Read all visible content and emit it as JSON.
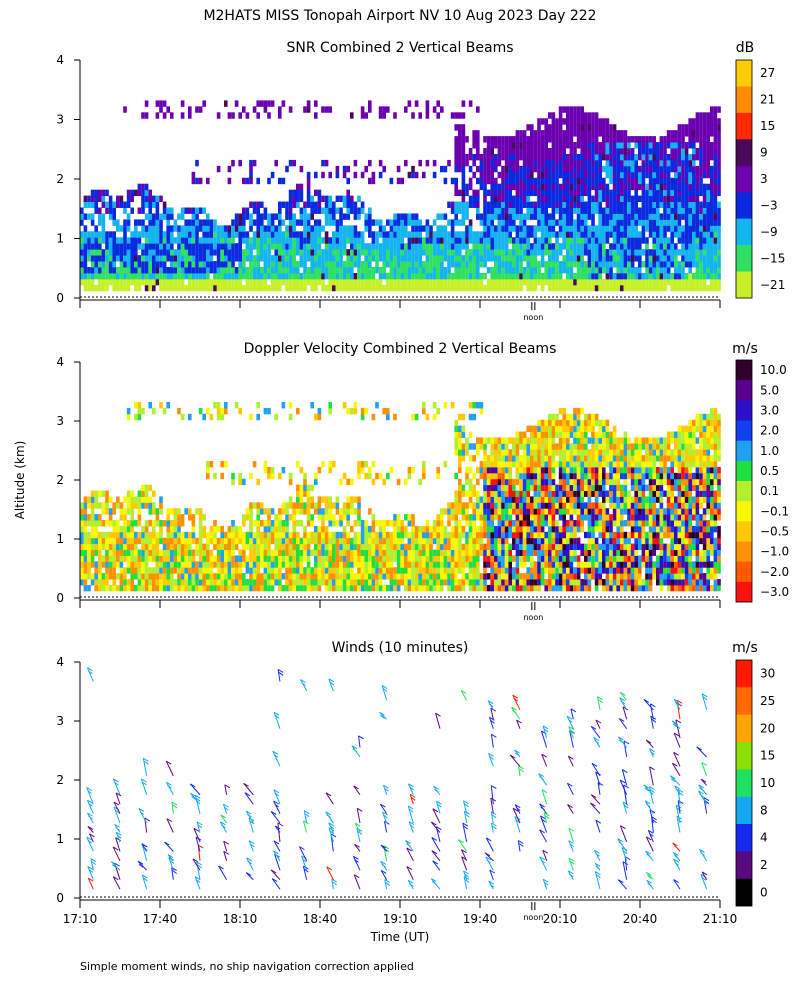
{
  "figure_title": "M2HATS MISS Tonopah Airport NV  10 Aug 2023 Day 222",
  "shared_y_label": "Altitude (km)",
  "shared_x_label": "Time (UT)",
  "footnote": "Simple moment winds, no ship navigation correction applied",
  "noon_label": "noon",
  "colors": {
    "background": "#ffffff",
    "axis": "#000000",
    "dotted_ground": "#000000"
  },
  "chart_data": [
    {
      "type": "heatmap",
      "title": "SNR Combined 2 Vertical Beams",
      "units": "dB",
      "x_range_minutes": [
        0,
        240
      ],
      "y_range_km": [
        0,
        4
      ],
      "y_ticks": [
        "0",
        "1",
        "2",
        "3",
        "4"
      ],
      "colorbar": {
        "labels": [
          "27",
          "21",
          "15",
          "9",
          "3",
          "−3",
          "−9",
          "−15",
          "−21"
        ],
        "colors": [
          "#ffcc00",
          "#ff8c00",
          "#ff2a00",
          "#4a0a5a",
          "#6a00b0",
          "#0a2ae0",
          "#14b4f0",
          "#30e060",
          "#c8f028"
        ]
      }
    },
    {
      "type": "heatmap",
      "title": "Doppler Velocity Combined 2 Vertical Beams",
      "units": "m/s",
      "x_range_minutes": [
        0,
        240
      ],
      "y_range_km": [
        0,
        4
      ],
      "y_ticks": [
        "0",
        "1",
        "2",
        "3",
        "4"
      ],
      "colorbar": {
        "labels": [
          "10.0",
          "5.0",
          "3.0",
          "2.0",
          "1.0",
          "0.5",
          "0.1",
          "−0.1",
          "−0.5",
          "−1.0",
          "−2.0",
          "−3.0"
        ],
        "colors": [
          "#30002a",
          "#5a0090",
          "#2a10c8",
          "#1040f0",
          "#20a0f0",
          "#20e040",
          "#b0f030",
          "#f8f800",
          "#ffc800",
          "#ff9000",
          "#ff5a00",
          "#ff1010"
        ]
      }
    },
    {
      "type": "scatter",
      "title": "Winds (10 minutes)",
      "units": "m/s",
      "x_range_minutes": [
        0,
        240
      ],
      "y_range_km": [
        0,
        4
      ],
      "y_ticks": [
        "0",
        "1",
        "2",
        "3",
        "4"
      ],
      "x_ticks": [
        "17:10",
        "17:40",
        "18:10",
        "18:40",
        "19:10",
        "19:40",
        "20:10",
        "20:40",
        "21:10"
      ],
      "colorbar": {
        "labels": [
          "30",
          "25",
          "20",
          "15",
          "10",
          "8",
          "4",
          "2",
          "0"
        ],
        "colors": [
          "#ff1a00",
          "#ff6a00",
          "#ffa500",
          "#8ee000",
          "#20e060",
          "#14a8f0",
          "#1428f0",
          "#5a0a80",
          "#000000"
        ]
      }
    }
  ]
}
